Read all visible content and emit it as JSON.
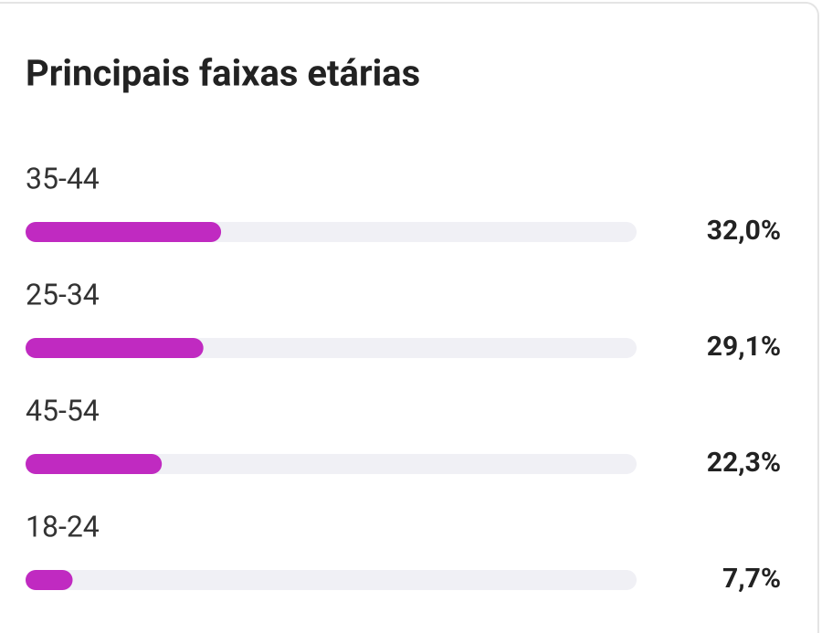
{
  "chart_data": {
    "type": "bar",
    "orientation": "horizontal",
    "title": "Principais faixas etárias",
    "categories": [
      "35-44",
      "25-34",
      "45-54",
      "18-24"
    ],
    "values": [
      32.0,
      29.1,
      22.3,
      7.7
    ],
    "value_labels": [
      "32,0%",
      "29,1%",
      "22,3%",
      "7,7%"
    ],
    "color": "#c02ac1",
    "track_color": "#f0f0f5",
    "xlim": [
      0,
      100
    ]
  }
}
